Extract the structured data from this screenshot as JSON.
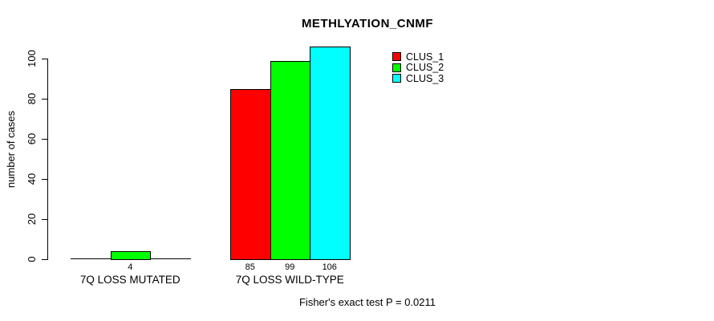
{
  "chart_data": {
    "type": "bar",
    "title": "METHLYATION_CNMF",
    "ylabel": "number of cases",
    "xlabel": "",
    "ylim": [
      0,
      100
    ],
    "yticks": [
      0,
      20,
      40,
      60,
      80,
      100
    ],
    "grid": false,
    "legend_position": "top-right",
    "series": [
      "CLUS_1",
      "CLUS_2",
      "CLUS_3"
    ],
    "colors": {
      "CLUS_1": "#FF0000",
      "CLUS_2": "#00FF00",
      "CLUS_3": "#00FFFF"
    },
    "axis_color": "#000000",
    "groups": [
      {
        "label": "7Q LOSS MUTATED",
        "values": [
          0,
          4,
          0
        ],
        "value_labels": [
          "",
          "4",
          ""
        ]
      },
      {
        "label": "7Q LOSS WILD-TYPE",
        "values": [
          85,
          99,
          106
        ],
        "value_labels": [
          "85",
          "99",
          "106"
        ]
      }
    ],
    "footer": "Fisher's exact test P = 0.0211"
  }
}
